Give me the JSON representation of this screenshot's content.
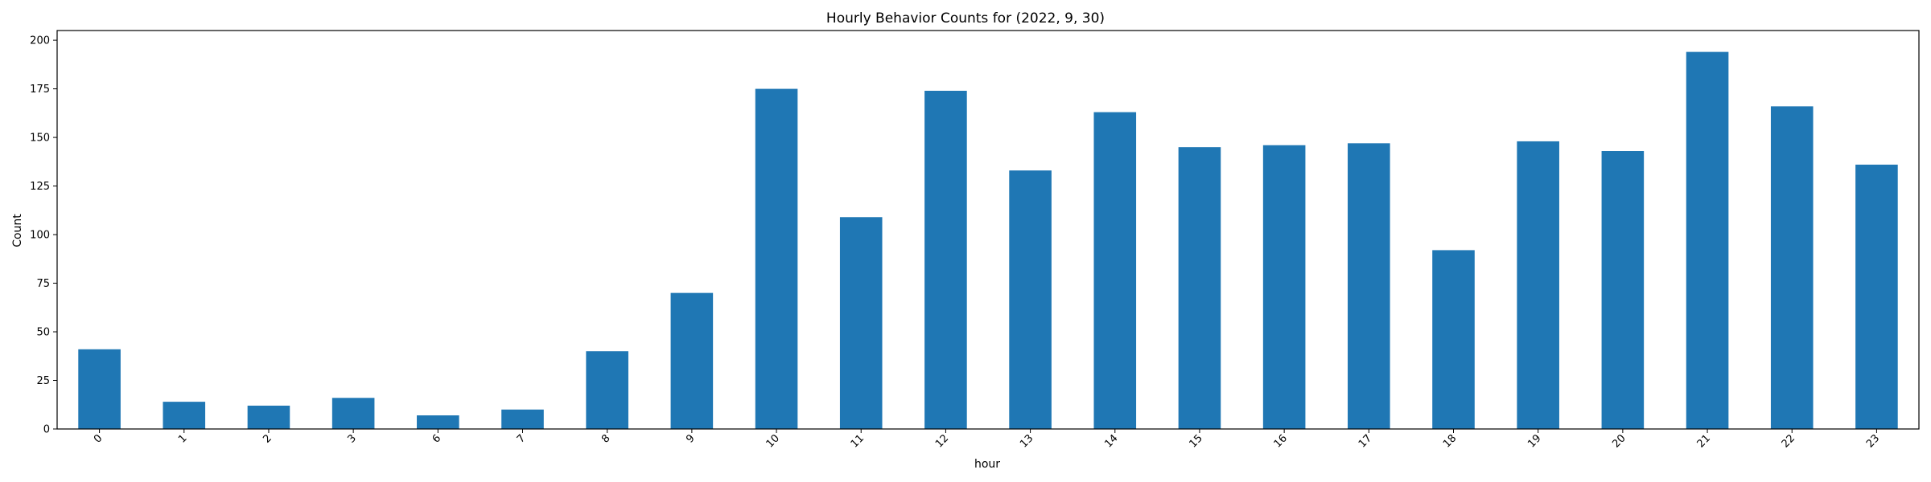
{
  "chart_data": {
    "type": "bar",
    "title": "Hourly Behavior Counts for (2022, 9, 30)",
    "xlabel": "hour",
    "ylabel": "Count",
    "categories": [
      "0",
      "1",
      "2",
      "3",
      "6",
      "7",
      "8",
      "9",
      "10",
      "11",
      "12",
      "13",
      "14",
      "15",
      "16",
      "17",
      "18",
      "19",
      "20",
      "21",
      "22",
      "23"
    ],
    "values": [
      41,
      14,
      12,
      16,
      7,
      10,
      40,
      70,
      175,
      109,
      174,
      133,
      163,
      145,
      146,
      147,
      92,
      148,
      143,
      194,
      166,
      136
    ],
    "ylim": [
      0,
      205
    ],
    "yticks": [
      0,
      25,
      50,
      75,
      100,
      125,
      150,
      175,
      200
    ],
    "bar_color": "#1f77b4",
    "grid": false,
    "legend": "none"
  }
}
